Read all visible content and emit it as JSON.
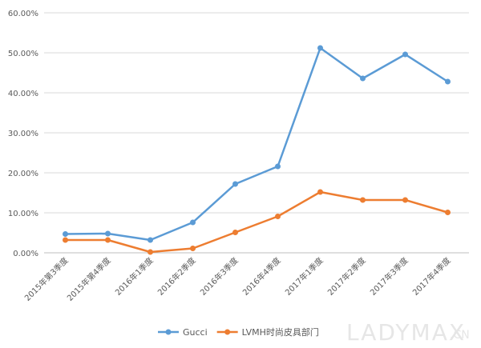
{
  "chart_data": {
    "type": "line",
    "title": "",
    "xlabel": "",
    "ylabel": "",
    "categories": [
      "2015年第3季度",
      "2015年第4季度",
      "2016年1季度",
      "2016年2季度",
      "2016年3季度",
      "2016年4季度",
      "2017年1季度",
      "2017年2季度",
      "2017年3季度",
      "2017年4季度"
    ],
    "ylim": [
      0,
      60
    ],
    "yticks": [
      "0.00%",
      "10.00%",
      "20.00%",
      "30.00%",
      "40.00%",
      "50.00%",
      "60.00%"
    ],
    "grid": true,
    "legend_position": "bottom",
    "series": [
      {
        "name": "Gucci",
        "color": "#5B9BD5",
        "values": [
          4.7,
          4.8,
          3.2,
          7.6,
          17.2,
          21.6,
          51.2,
          43.6,
          49.6,
          42.8
        ]
      },
      {
        "name": "LVMH时尚皮具部门",
        "color": "#ED7D31",
        "values": [
          3.2,
          3.2,
          0.2,
          1.1,
          5.1,
          9.1,
          15.2,
          13.2,
          13.2,
          10.1
        ]
      }
    ]
  },
  "watermark": {
    "main": "LADYMAX",
    "suffix": ".CN"
  }
}
